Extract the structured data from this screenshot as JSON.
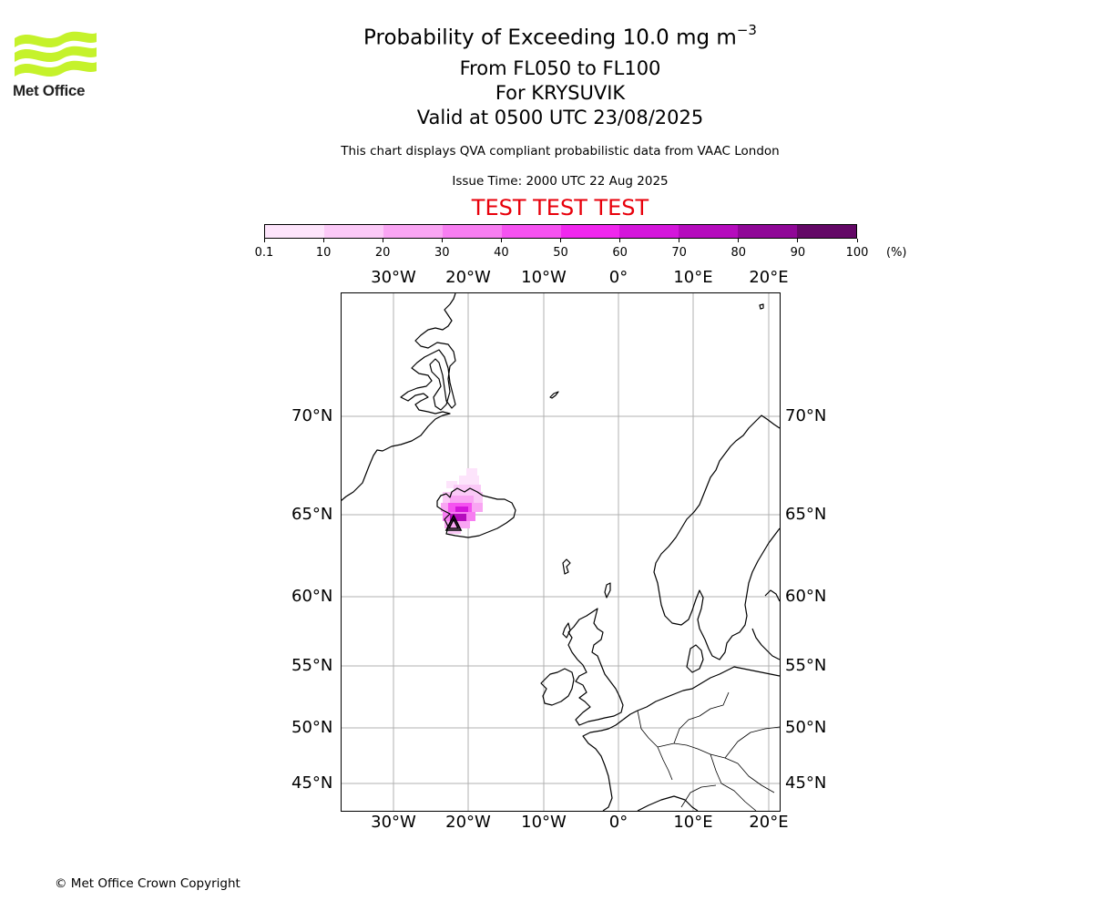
{
  "logo": {
    "text": "Met Office",
    "color": "#c5f22b"
  },
  "header": {
    "title": "Probability of Exceeding 10.0 mg m",
    "title_exponent": "−3",
    "level_range": "From FL050 to FL100",
    "location": "For KRYSUVIK",
    "valid_time": "Valid at 0500 UTC 23/08/2025",
    "description": "This chart displays QVA compliant probabilistic data from VAAC London",
    "issue_time": "Issue Time: 2000 UTC 22 Aug 2025",
    "test_banner": "TEST TEST TEST",
    "test_color": "#e8000b"
  },
  "colorbar": {
    "ticks": [
      "0.1",
      "10",
      "20",
      "30",
      "40",
      "50",
      "60",
      "70",
      "80",
      "90",
      "100"
    ],
    "unit": "(%)",
    "colors": [
      "#fde4fb",
      "#fbc9f7",
      "#f9a5f3",
      "#f77ef1",
      "#f552f0",
      "#f027ee",
      "#d416db",
      "#b50cbd",
      "#8f0797",
      "#630866"
    ]
  },
  "map": {
    "lon_labels": [
      "30°W",
      "20°W",
      "10°W",
      "0°",
      "10°E",
      "20°E"
    ],
    "lat_labels": [
      "70°N",
      "65°N",
      "60°N",
      "55°N",
      "50°N",
      "45°N"
    ],
    "volcano": "KRYSUVIK",
    "volcano_marker": "triangle"
  },
  "footer": {
    "copyright": "© Met Office Crown Copyright"
  }
}
